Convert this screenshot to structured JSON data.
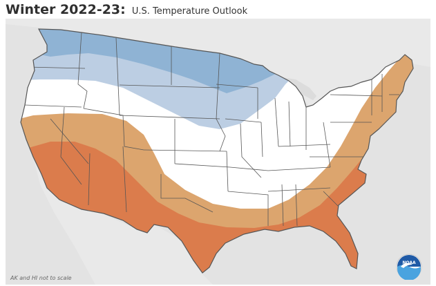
{
  "header": {
    "title_bold": "Winter 2022-23:",
    "title_rest": "U.S. Temperature Outlook"
  },
  "map": {
    "region": "Contiguous United States",
    "categories": [
      {
        "name": "below-normal-likely",
        "color": "#8fb3d4"
      },
      {
        "name": "below-normal-leaning",
        "color": "#bccee3"
      },
      {
        "name": "equal-chances",
        "color": "#ffffff"
      },
      {
        "name": "above-normal-leaning",
        "color": "#dca56e"
      },
      {
        "name": "above-normal-likely",
        "color": "#db7c4c"
      }
    ],
    "background_land": "#e6e6e6",
    "background_water": "#dcdcdc",
    "state_border_color": "#555555"
  },
  "footer": {
    "note": "AK and HI not to scale"
  },
  "logo": {
    "text": "NOAA",
    "icon": "noaa-logo-icon"
  }
}
